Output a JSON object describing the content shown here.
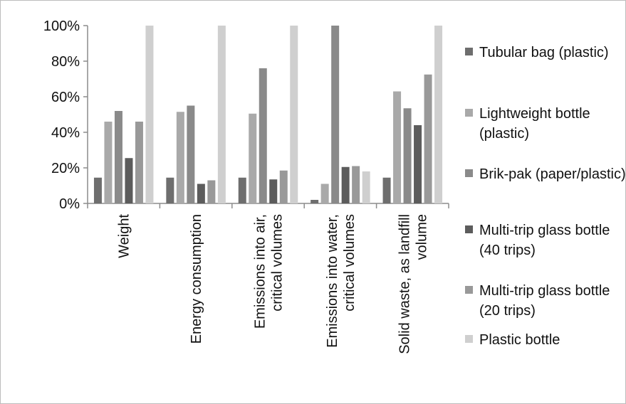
{
  "chart_data": {
    "type": "bar",
    "title": "",
    "xlabel": "",
    "ylabel": "",
    "ylim": [
      0,
      100
    ],
    "yticks": [
      "0%",
      "20%",
      "40%",
      "60%",
      "80%",
      "100%"
    ],
    "grid": false,
    "legend_position": "right",
    "categories": [
      [
        "Weight"
      ],
      [
        "Energy consumption"
      ],
      [
        "Emissions into air,",
        "critical volumes"
      ],
      [
        "Emissions into water,",
        "critical volumes"
      ],
      [
        "Solid waste, as landfill",
        "volume"
      ]
    ],
    "series": [
      {
        "name": [
          "Tubular bag (plastic)"
        ],
        "color": "#6e6e6e",
        "values": [
          14.5,
          14.5,
          14.5,
          2,
          14.5
        ]
      },
      {
        "name": [
          "Lightweight bottle",
          "(plastic)"
        ],
        "color": "#a9a9a9",
        "values": [
          46,
          51.5,
          50.5,
          11,
          63
        ]
      },
      {
        "name": [
          "Brik-pak (paper/plastic)"
        ],
        "color": "#8a8a8a",
        "values": [
          52,
          55,
          76,
          100,
          53.5
        ]
      },
      {
        "name": [
          "Multi-trip glass bottle",
          "(40 trips)"
        ],
        "color": "#5c5c5c",
        "values": [
          25.5,
          11,
          13.5,
          20.5,
          44
        ]
      },
      {
        "name": [
          "Multi-trip glass bottle",
          "(20 trips)"
        ],
        "color": "#999999",
        "values": [
          46,
          13,
          18.5,
          21,
          72.5
        ]
      },
      {
        "name": [
          "Plastic bottle"
        ],
        "color": "#cfcfcf",
        "values": [
          100,
          100,
          100,
          18,
          100
        ]
      }
    ]
  }
}
